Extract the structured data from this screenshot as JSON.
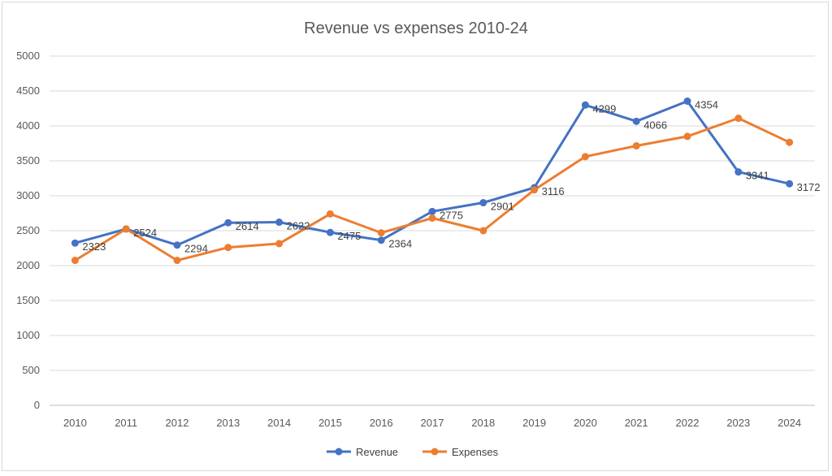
{
  "chart_data": {
    "type": "line",
    "title": "Revenue vs expenses 2010-24",
    "xlabel": "",
    "ylabel": "",
    "categories": [
      "2010",
      "2011",
      "2012",
      "2013",
      "2014",
      "2015",
      "2016",
      "2017",
      "2018",
      "2019",
      "2020",
      "2021",
      "2022",
      "2023",
      "2024"
    ],
    "ylim": [
      0,
      5000
    ],
    "yticks": [
      "0",
      "500",
      "1000",
      "1500",
      "2000",
      "2500",
      "3000",
      "3500",
      "4000",
      "4500",
      "5000"
    ],
    "grid": true,
    "legend": "bottom",
    "series": [
      {
        "name": "Revenue",
        "color": "#4472C4",
        "values": [
          2323,
          2524,
          2294,
          2614,
          2622,
          2475,
          2364,
          2775,
          2901,
          3116,
          4299,
          4066,
          4354,
          3341,
          3172
        ],
        "data_labels": [
          "2323",
          "2524",
          "2294",
          "2614",
          "2622",
          "2475",
          "2364",
          "2775",
          "2901",
          "3116",
          "4299",
          "4066",
          "4354",
          "3341",
          "3172"
        ]
      },
      {
        "name": "Expenses",
        "color": "#ED7D31",
        "values": [
          2075,
          2525,
          2075,
          2260,
          2315,
          2740,
          2470,
          2680,
          2500,
          3085,
          3560,
          3715,
          3850,
          4110,
          3765
        ]
      }
    ]
  }
}
